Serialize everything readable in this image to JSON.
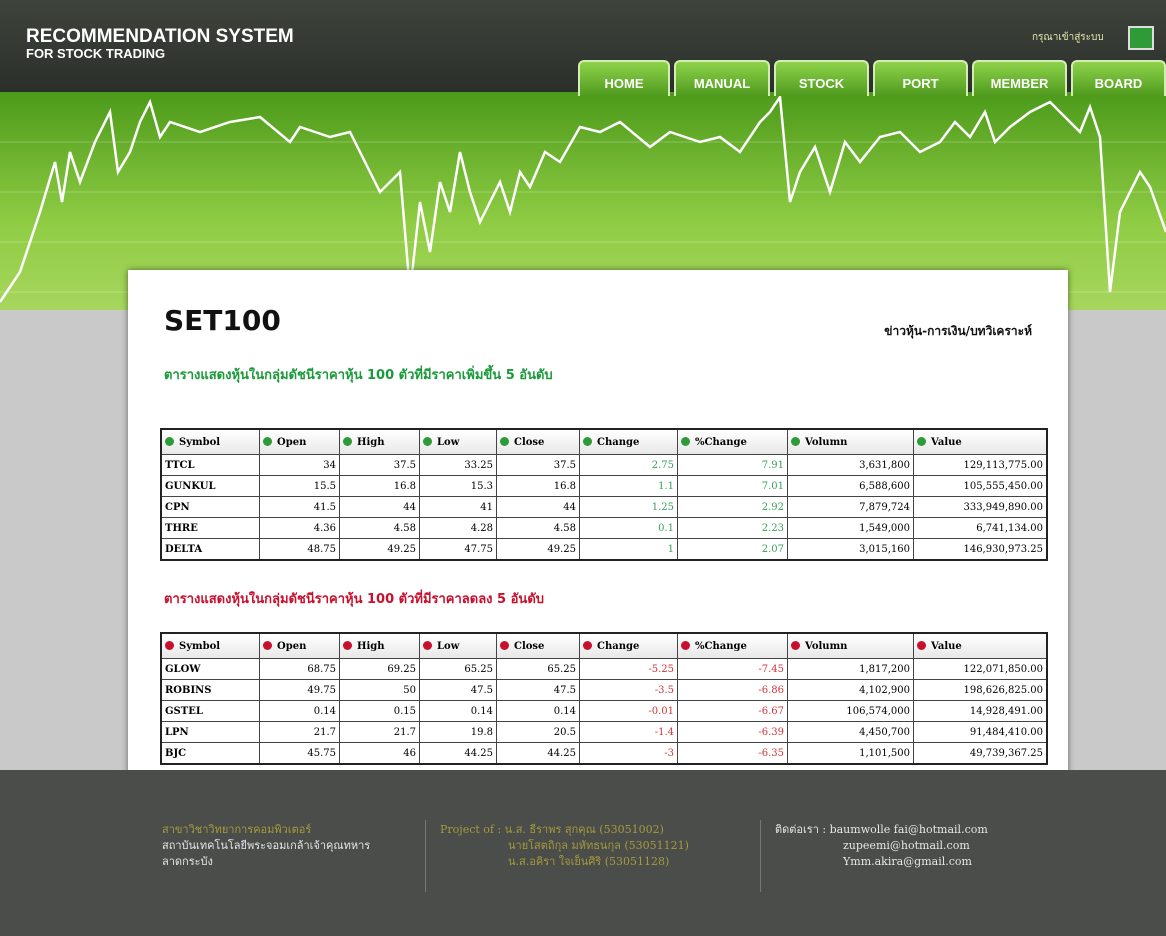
{
  "header": {
    "title": "RECOMMENDATION SYSTEM",
    "subtitle": "FOR STOCK TRADING",
    "login": "กรุณาเข้าสู่ระบบ"
  },
  "nav": [
    "HOME",
    "MANUAL",
    "STOCK",
    "PORT",
    "MEMBER",
    "BOARD"
  ],
  "panel": {
    "title": "SET100",
    "link": "ข่าวหุ้น-การเงิน/บทวิเคราะห์"
  },
  "columns": [
    "Symbol",
    "Open",
    "High",
    "Low",
    "Close",
    "Change",
    "%Change",
    "Volumn",
    "Value"
  ],
  "tables": [
    {
      "heading": "ตารางแสดงหุ้นในกลุ่มดัชนีราคาหุ้น 100 ตัวที่มีราคาเพิ่มขึ้น 5 อันดับ",
      "rows": [
        [
          "TTCL",
          "34",
          "37.5",
          "33.25",
          "37.5",
          "2.75",
          "7.91",
          "3,631,800",
          "129,113,775.00"
        ],
        [
          "GUNKUL",
          "15.5",
          "16.8",
          "15.3",
          "16.8",
          "1.1",
          "7.01",
          "6,588,600",
          "105,555,450.00"
        ],
        [
          "CPN",
          "41.5",
          "44",
          "41",
          "44",
          "1.25",
          "2.92",
          "7,879,724",
          "333,949,890.00"
        ],
        [
          "THRE",
          "4.36",
          "4.58",
          "4.28",
          "4.58",
          "0.1",
          "2.23",
          "1,549,000",
          "6,741,134.00"
        ],
        [
          "DELTA",
          "48.75",
          "49.25",
          "47.75",
          "49.25",
          "1",
          "2.07",
          "3,015,160",
          "146,930,973.25"
        ]
      ]
    },
    {
      "heading": "ตารางแสดงหุ้นในกลุ่มดัชนีราคาหุ้น 100 ตัวที่มีราคาลดลง 5 อันดับ",
      "rows": [
        [
          "GLOW",
          "68.75",
          "69.25",
          "65.25",
          "65.25",
          "-5.25",
          "-7.45",
          "1,817,200",
          "122,071,850.00"
        ],
        [
          "ROBINS",
          "49.75",
          "50",
          "47.5",
          "47.5",
          "-3.5",
          "-6.86",
          "4,102,900",
          "198,626,825.00"
        ],
        [
          "GSTEL",
          "0.14",
          "0.15",
          "0.14",
          "0.14",
          "-0.01",
          "-6.67",
          "106,574,000",
          "14,928,491.00"
        ],
        [
          "LPN",
          "21.7",
          "21.7",
          "19.8",
          "20.5",
          "-1.4",
          "-6.39",
          "4,450,700",
          "91,484,410.00"
        ],
        [
          "BJC",
          "45.75",
          "46",
          "44.25",
          "44.25",
          "-3",
          "-6.35",
          "1,101,500",
          "49,739,367.25"
        ]
      ]
    }
  ],
  "footer": {
    "institute": [
      "สาขาวิชาวิทยาการคอมพิวเตอร์",
      "สถาบันเทคโนโลยีพระจอมเกล้าเจ้าคุณทหาร",
      "ลาดกระบัง"
    ],
    "project": [
      "Project of : น.ส. ธีราพร สุกคุณ (53051002)",
      "นายโสตถิกุล มหัทธนกุล (53051121)",
      "น.ส.อคิรา ใจเย็นศิริ (53051128)"
    ],
    "contact": [
      "ติดต่อเรา : baumwolle fai@hotmail.com",
      "zupeemi@hotmail.com",
      "Ymm.akira@gmail.com"
    ]
  }
}
